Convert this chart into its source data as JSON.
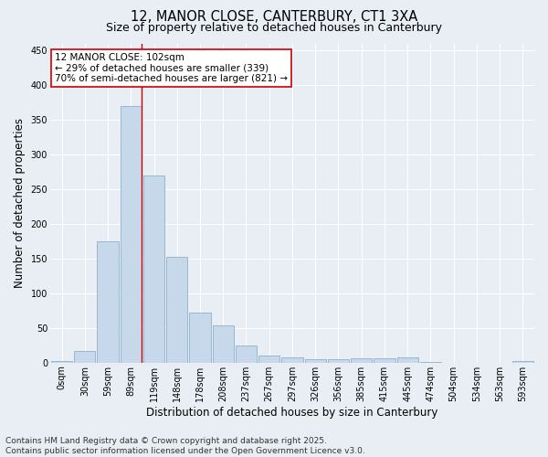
{
  "title_line1": "12, MANOR CLOSE, CANTERBURY, CT1 3XA",
  "title_line2": "Size of property relative to detached houses in Canterbury",
  "xlabel": "Distribution of detached houses by size in Canterbury",
  "ylabel": "Number of detached properties",
  "bar_color": "#c8d8eb",
  "bar_edge_color": "#8ab0cc",
  "categories": [
    "0sqm",
    "30sqm",
    "59sqm",
    "89sqm",
    "119sqm",
    "148sqm",
    "178sqm",
    "208sqm",
    "237sqm",
    "267sqm",
    "297sqm",
    "326sqm",
    "356sqm",
    "385sqm",
    "415sqm",
    "445sqm",
    "474sqm",
    "504sqm",
    "534sqm",
    "563sqm",
    "593sqm"
  ],
  "values": [
    2,
    17,
    175,
    370,
    270,
    152,
    72,
    54,
    25,
    10,
    7,
    5,
    5,
    6,
    6,
    8,
    1,
    0,
    0,
    0,
    2
  ],
  "ylim": [
    0,
    460
  ],
  "yticks": [
    0,
    50,
    100,
    150,
    200,
    250,
    300,
    350,
    400,
    450
  ],
  "property_bin_index": 3,
  "annotation_text": "12 MANOR CLOSE: 102sqm\n← 29% of detached houses are smaller (339)\n70% of semi-detached houses are larger (821) →",
  "annotation_box_color": "#ffffff",
  "annotation_box_edge_color": "#cc0000",
  "vline_color": "#cc0000",
  "footer_line1": "Contains HM Land Registry data © Crown copyright and database right 2025.",
  "footer_line2": "Contains public sector information licensed under the Open Government Licence v3.0.",
  "background_color": "#e8eef4",
  "grid_color": "#ffffff",
  "title_fontsize": 10.5,
  "subtitle_fontsize": 9,
  "axis_label_fontsize": 8.5,
  "tick_label_fontsize": 7,
  "footer_fontsize": 6.5,
  "annotation_fontsize": 7.5
}
